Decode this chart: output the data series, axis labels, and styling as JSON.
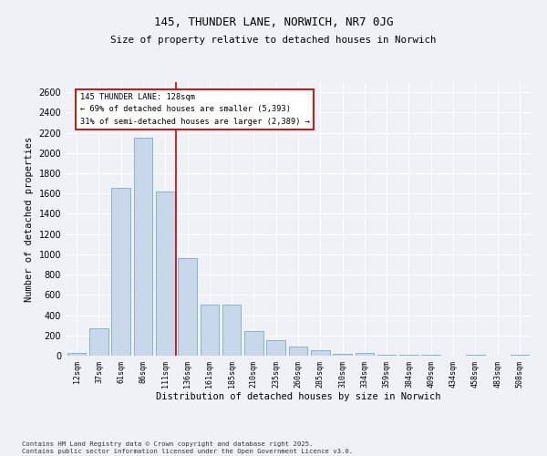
{
  "title1": "145, THUNDER LANE, NORWICH, NR7 0JG",
  "title2": "Size of property relative to detached houses in Norwich",
  "xlabel": "Distribution of detached houses by size in Norwich",
  "ylabel": "Number of detached properties",
  "categories": [
    "12sqm",
    "37sqm",
    "61sqm",
    "86sqm",
    "111sqm",
    "136sqm",
    "161sqm",
    "185sqm",
    "210sqm",
    "235sqm",
    "260sqm",
    "285sqm",
    "310sqm",
    "334sqm",
    "359sqm",
    "384sqm",
    "409sqm",
    "434sqm",
    "458sqm",
    "483sqm",
    "508sqm"
  ],
  "values": [
    25,
    270,
    1660,
    2150,
    1620,
    960,
    500,
    500,
    240,
    150,
    90,
    50,
    20,
    30,
    10,
    10,
    10,
    0,
    10,
    0,
    5
  ],
  "bar_color": "#c8d8ea",
  "bar_edge_color": "#7aaac8",
  "vline_color": "#cc0000",
  "vline_x_index": 4.5,
  "annotation_text_line1": "145 THUNDER LANE: 128sqm",
  "annotation_text_line2": "← 69% of detached houses are smaller (5,393)",
  "annotation_text_line3": "31% of semi-detached houses are larger (2,389) →",
  "annotation_box_color": "#cc0000",
  "annotation_box_bg": "#ffffff",
  "ylim": [
    0,
    2700
  ],
  "yticks": [
    0,
    200,
    400,
    600,
    800,
    1000,
    1200,
    1400,
    1600,
    1800,
    2000,
    2200,
    2400,
    2600
  ],
  "footer1": "Contains HM Land Registry data © Crown copyright and database right 2025.",
  "footer2": "Contains public sector information licensed under the Open Government Licence v3.0.",
  "bg_color": "#eef2f7",
  "plot_bg_color": "#eef2f7",
  "grid_color": "#ffffff"
}
